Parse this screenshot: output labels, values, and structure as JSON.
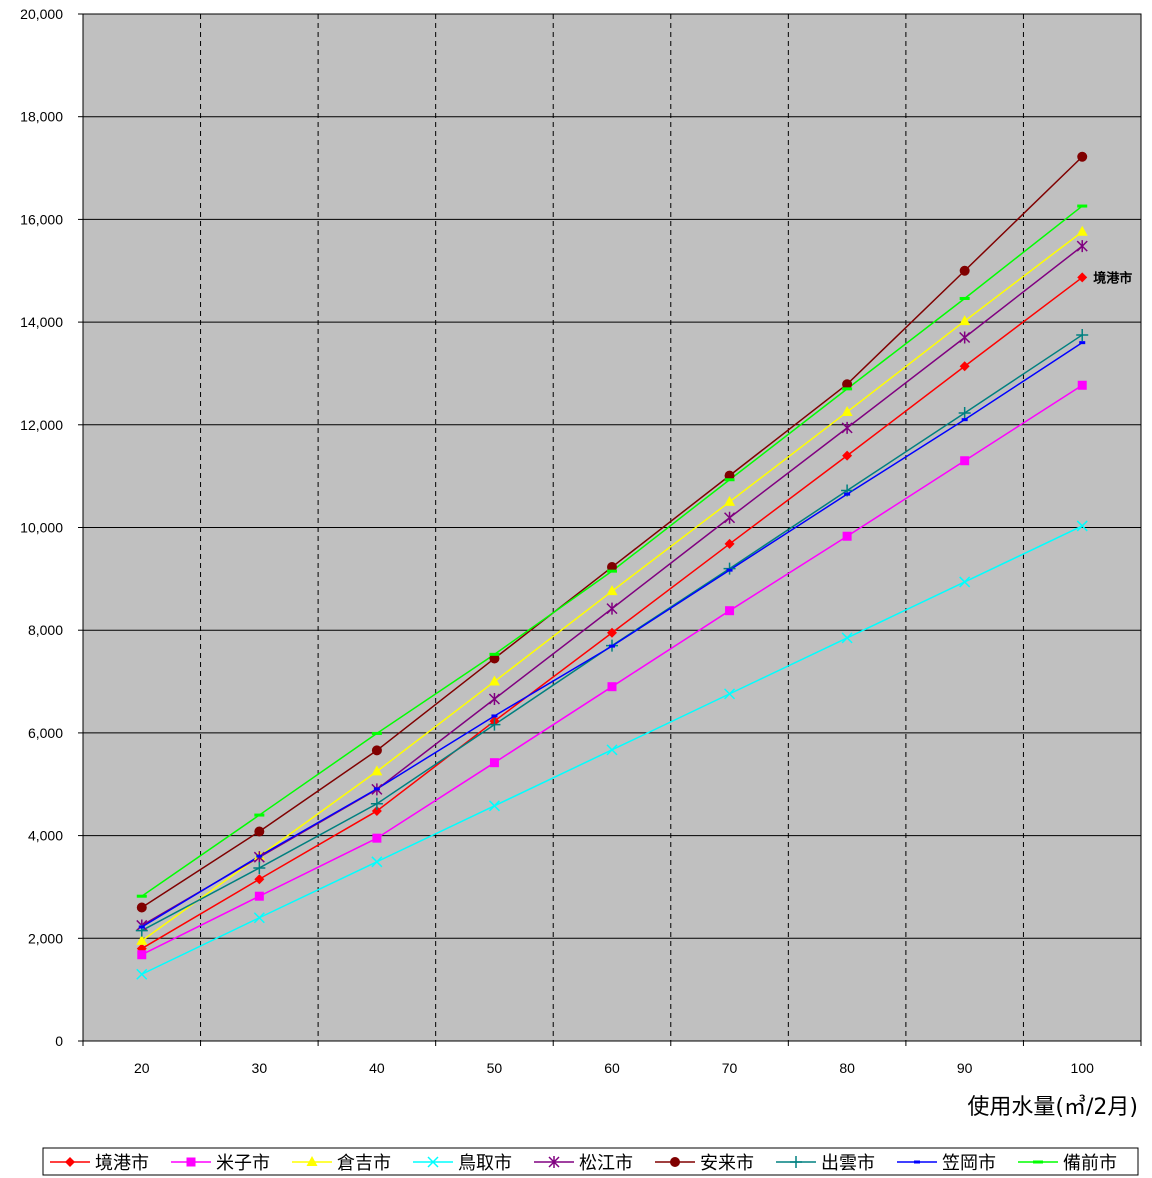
{
  "chart_data": {
    "type": "line",
    "title": "",
    "xlabel": "使用水量(㎥/2月)",
    "ylabel": "",
    "x": [
      20,
      30,
      40,
      50,
      60,
      70,
      80,
      90,
      100
    ],
    "xlim": [
      15,
      105
    ],
    "ylim": [
      0,
      20000
    ],
    "y_ticks": [
      "0",
      "2,000",
      "4,000",
      "6,000",
      "8,000",
      "10,000",
      "12,000",
      "14,000",
      "16,000",
      "18,000",
      "20,000"
    ],
    "x_ticks": [
      "20",
      "30",
      "40",
      "50",
      "60",
      "70",
      "80",
      "90",
      "100"
    ],
    "grid": true,
    "legend_position": "bottom",
    "annotation": {
      "text": "境港市",
      "series": "境港市"
    },
    "series": [
      {
        "name": "境港市",
        "color": "#ff0000",
        "marker": "diamond",
        "values": [
          1800,
          3150,
          4480,
          6230,
          7950,
          9680,
          11400,
          13140,
          14870
        ]
      },
      {
        "name": "米子市",
        "color": "#ff00ff",
        "marker": "square",
        "values": [
          1680,
          2820,
          3950,
          5420,
          6900,
          8380,
          9830,
          11300,
          12770
        ]
      },
      {
        "name": "倉吉市",
        "color": "#ffff00",
        "marker": "triangle",
        "values": [
          1950,
          3600,
          5250,
          7000,
          8760,
          10500,
          12250,
          14020,
          15760
        ]
      },
      {
        "name": "鳥取市",
        "color": "#00ffff",
        "marker": "x",
        "values": [
          1300,
          2400,
          3490,
          4580,
          5670,
          6760,
          7850,
          8940,
          10030
        ]
      },
      {
        "name": "松江市",
        "color": "#800080",
        "marker": "star",
        "values": [
          2250,
          3580,
          4900,
          6660,
          8420,
          10190,
          11940,
          13700,
          15480
        ]
      },
      {
        "name": "安来市",
        "color": "#800000",
        "marker": "circle",
        "values": [
          2600,
          4080,
          5660,
          7450,
          9230,
          11010,
          12790,
          15000,
          17220
        ]
      },
      {
        "name": "出雲市",
        "color": "#008080",
        "marker": "plus",
        "values": [
          2150,
          3370,
          4620,
          6160,
          7700,
          9200,
          10720,
          12230,
          13750
        ]
      },
      {
        "name": "笠岡市",
        "color": "#0000ff",
        "marker": "dash",
        "values": [
          2220,
          3600,
          4910,
          6330,
          7690,
          9170,
          10650,
          12100,
          13600
        ]
      },
      {
        "name": "備前市",
        "color": "#00ff00",
        "marker": "hline",
        "values": [
          2820,
          4400,
          5990,
          7530,
          9150,
          10930,
          12700,
          14460,
          16260
        ]
      }
    ]
  }
}
